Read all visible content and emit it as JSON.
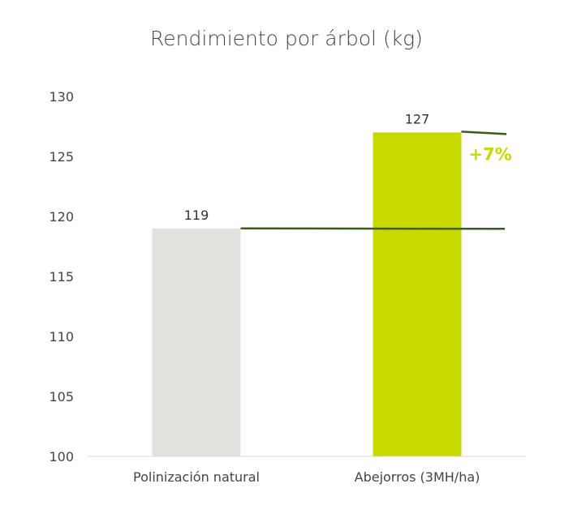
{
  "chart_data": {
    "type": "bar",
    "title": "Rendimiento por árbol (kg)",
    "categories": [
      "Polinización natural",
      "Abejorros (3MH/ha)"
    ],
    "values": [
      119,
      127
    ],
    "data_labels": [
      "119",
      "127"
    ],
    "colors": [
      "#e3e1dd",
      "#c8d900"
    ],
    "ylim": [
      100,
      130
    ],
    "yticks": [
      100,
      105,
      110,
      115,
      120,
      125,
      130
    ],
    "grid": false,
    "legend": "none",
    "annotation": {
      "text": "+7%",
      "color": "#c8d900",
      "line_color": "#3a5a1f"
    }
  }
}
